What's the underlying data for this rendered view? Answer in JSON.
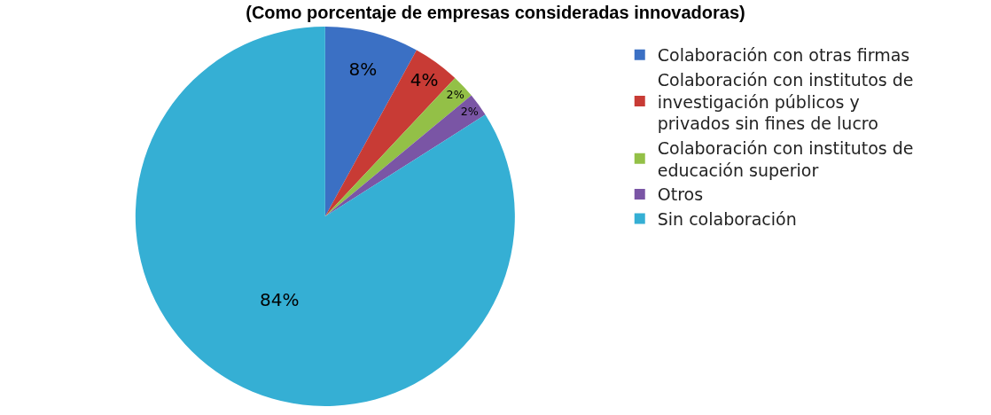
{
  "chart_data": {
    "type": "pie",
    "title": "(Como porcentaje de empresas consideradas innovadoras)",
    "categories": [
      "Colaboración con otras firmas",
      "Colaboración con institutos de investigación públicos y privados sin fines de lucro",
      "Colaboración con institutos de educación superior",
      "Otros",
      "Sin colaboración"
    ],
    "values": [
      8,
      4,
      2,
      2,
      84
    ],
    "colors": [
      "#3b70c4",
      "#c83b35",
      "#93c047",
      "#7a55a5",
      "#35afd4"
    ],
    "value_labels": [
      "8%",
      "4%",
      "2%",
      "2%",
      "84%"
    ],
    "legend": "right"
  }
}
